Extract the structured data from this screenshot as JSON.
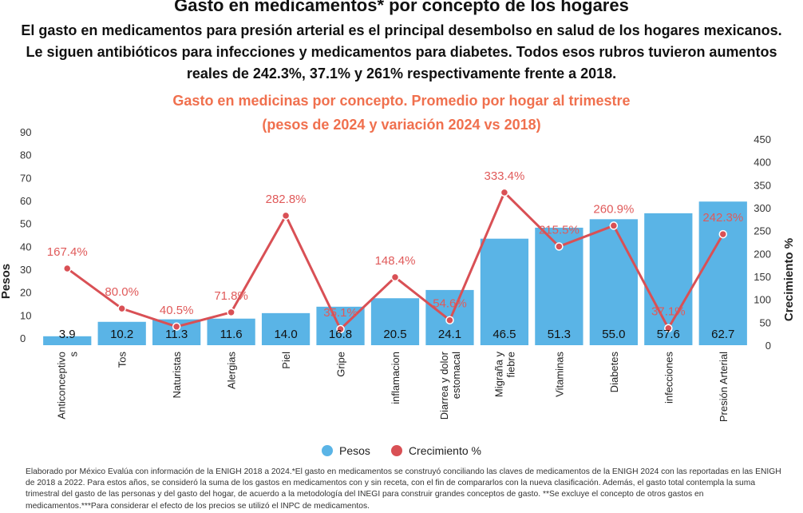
{
  "header": {
    "title": "Gasto en medicamentos* por concepto de los hogares",
    "subtitle": "El gasto en medicamentos para presión arterial es el principal desembolso en salud de los hogares mexicanos. Le siguen antibióticos para infecciones y medicamentos para diabetes. Todos esos rubros tuvieron aumentos reales de 242.3%, 37.1% y 261% respectivamente frente a 2018.",
    "chart_title_line1": "Gasto en medicinas por concepto. Promedio por hogar al trimestre",
    "chart_title_line2": "(pesos de 2024 y variación 2024 vs 2018)"
  },
  "legend": {
    "pesos": "Pesos",
    "crecimiento": "Crecimiento %"
  },
  "footnote": "Elaborado por México Evalúa con información de la ENIGH 2018 a 2024.*El gasto en medicamentos se construyó conciliando las claves de medicamentos de la ENIGH 2024 con las reportadas en las ENIGH de 2018 a 2022. Para estos años, se consideró la suma de los gastos en medicamentos con y sin receta, con el fin de compararlos con la nueva clasificación. Además, el gasto total contempla la suma trimestral del gasto de las personas y del gasto del hogar, de acuerdo a la metodología del INEGI para construir grandes conceptos de gasto. **Se excluye el concepto de otros gastos en medicamentos.***Para considerar el efecto de los precios se utilizó el INPC de medicamentos.",
  "colors": {
    "bar": "#5ab4e6",
    "line": "#d95055",
    "pct_label": "#e05a5a",
    "chart_title": "#f0704e"
  },
  "chart_data": {
    "type": "bar",
    "categories": [
      "Anticonceptivos",
      "Tos",
      "Naturistas",
      "Alergias",
      "Piel",
      "Gripe",
      "inflamacion",
      "Diarrea y dolor estomacal",
      "Migraña y fiebre",
      "Vitaminas",
      "Diabetes",
      "infecciones",
      "Presión Arterial"
    ],
    "category_lines": [
      [
        "Anticonceptivo",
        "s"
      ],
      [
        "Tos"
      ],
      [
        "Naturistas"
      ],
      [
        "Alergias"
      ],
      [
        "Piel"
      ],
      [
        "Gripe"
      ],
      [
        "inflamacion"
      ],
      [
        "Diarrea y dolor",
        "estomacal"
      ],
      [
        "Migraña y",
        "fiebre"
      ],
      [
        "Vitaminas"
      ],
      [
        "Diabetes"
      ],
      [
        "infecciones"
      ],
      [
        "Presión Arterial"
      ]
    ],
    "series": [
      {
        "name": "Pesos",
        "type": "bar",
        "axis": "left",
        "values": [
          3.9,
          10.2,
          11.3,
          11.6,
          14.0,
          16.8,
          20.5,
          24.1,
          46.5,
          51.3,
          55.0,
          57.6,
          62.7
        ],
        "labels": [
          "3.9",
          "10.2",
          "11.3",
          "11.6",
          "14.0",
          "16.8",
          "20.5",
          "24.1",
          "46.5",
          "51.3",
          "55.0",
          "57.6",
          "62.7"
        ]
      },
      {
        "name": "Crecimiento %",
        "type": "line",
        "axis": "right",
        "values": [
          167.4,
          80.0,
          40.5,
          71.8,
          282.8,
          35.1,
          148.4,
          54.6,
          333.4,
          215.5,
          260.9,
          37.1,
          242.3
        ],
        "labels": [
          "167.4%",
          "80.0%",
          "40.5%",
          "71.8%",
          "282.8%",
          "35.1%",
          "148.4%",
          "54.6%",
          "333.4%",
          "215.5%",
          "260.9%",
          "37.1%",
          "242.3%"
        ]
      }
    ],
    "ylabel": "Pesos",
    "y2label": "Crecimiento %",
    "ylim": [
      0,
      90
    ],
    "y2lim": [
      0,
      450
    ],
    "yticks": [
      0,
      10,
      20,
      30,
      40,
      50,
      60,
      70,
      80,
      90
    ],
    "y2ticks": [
      0,
      50,
      100,
      150,
      200,
      250,
      300,
      350,
      400,
      450
    ],
    "legend_position": "bottom",
    "grid": false
  }
}
